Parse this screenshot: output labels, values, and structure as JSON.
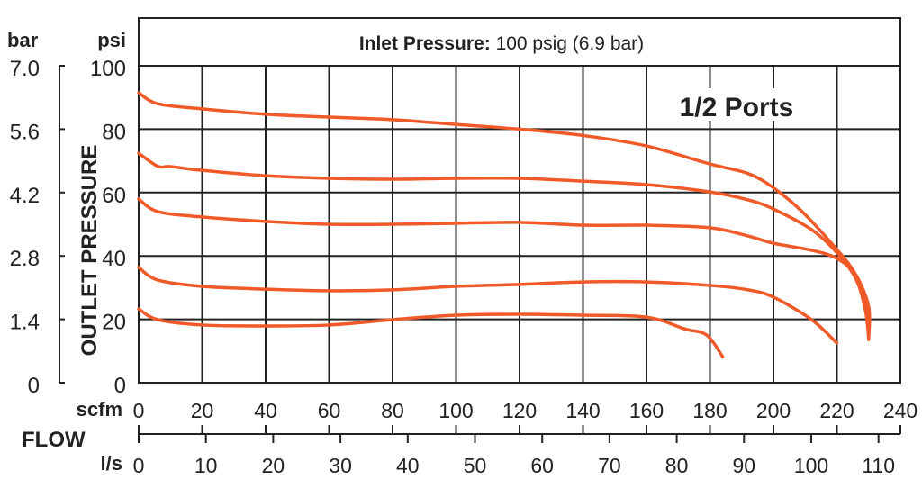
{
  "chart_data": {
    "type": "line",
    "title_bold": "Inlet Pressure:",
    "title_rest": "100 psig (6.9 bar)",
    "annotation": "1/2 Ports",
    "ylabel": "OUTLET PRESSURE",
    "y_left_unit": "bar",
    "y_unit": "psi",
    "x_unit": "scfm",
    "x2_unit": "l/s",
    "xlabel": "FLOW",
    "xlim": [
      0,
      240
    ],
    "ylim": [
      0,
      100
    ],
    "grid": true,
    "line_color": "#f05a28",
    "x_ticks": [
      "0",
      "20",
      "40",
      "60",
      "80",
      "100",
      "120",
      "140",
      "160",
      "180",
      "200",
      "220",
      "240"
    ],
    "y_ticks": [
      "0",
      "20",
      "40",
      "60",
      "80",
      "100"
    ],
    "bar_ticks": [
      "0",
      "1.4",
      "2.8",
      "4.2",
      "5.6",
      "7.0"
    ],
    "ls_ticks": [
      "0",
      "10",
      "20",
      "30",
      "40",
      "50",
      "60",
      "70",
      "80",
      "90",
      "100",
      "110"
    ],
    "series": [
      {
        "x": [
          0,
          6,
          20,
          40,
          60,
          80,
          100,
          120,
          140,
          160,
          180,
          192,
          200,
          209,
          220,
          226,
          230,
          230
        ],
        "y": [
          91.5,
          88,
          86.4,
          84.7,
          83.8,
          83,
          81.5,
          80,
          78,
          74.7,
          69,
          66,
          61.5,
          54,
          42,
          34,
          24,
          13.6
        ]
      },
      {
        "x": [
          0,
          6,
          10,
          20,
          40,
          60,
          80,
          100,
          120,
          140,
          160,
          180,
          192,
          200,
          212,
          220,
          226,
          229,
          230
        ],
        "y": [
          72.4,
          68.3,
          68.2,
          67,
          65.3,
          64.5,
          64.2,
          64.5,
          64.5,
          63.6,
          62.5,
          60.2,
          57.7,
          54.8,
          48.3,
          41,
          32.7,
          22.7,
          14
        ]
      },
      {
        "x": [
          0,
          6,
          20,
          40,
          60,
          80,
          100,
          120,
          140,
          160,
          180,
          192,
          200,
          212,
          220,
          226,
          229,
          230
        ],
        "y": [
          58,
          54,
          52.3,
          50.9,
          50,
          50,
          50.3,
          50.6,
          49.7,
          49.7,
          48.9,
          46.3,
          44,
          41.8,
          39.2,
          34,
          25.6,
          15.6
        ]
      },
      {
        "x": [
          0,
          6,
          20,
          40,
          60,
          80,
          100,
          120,
          140,
          160,
          180,
          192,
          200,
          212,
          220
        ],
        "y": [
          36.4,
          32.4,
          30.4,
          29.5,
          29,
          29.3,
          30.4,
          31,
          31.8,
          31.8,
          30.7,
          29.3,
          27,
          19.9,
          12.5
        ]
      },
      {
        "x": [
          0,
          6,
          20,
          40,
          60,
          80,
          100,
          120,
          140,
          160,
          172,
          179,
          184
        ],
        "y": [
          23.3,
          19.9,
          18.2,
          17.9,
          18.2,
          19.9,
          21.3,
          21.6,
          21.3,
          20.7,
          17,
          15,
          8.2
        ]
      }
    ]
  }
}
